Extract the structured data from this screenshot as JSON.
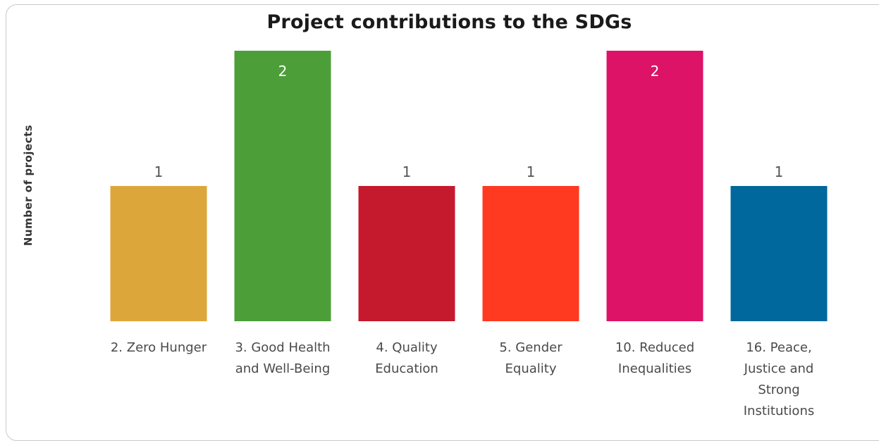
{
  "chart_data": {
    "type": "bar",
    "title": "Project contributions to the SDGs",
    "xlabel": "",
    "ylabel": "Number of projects",
    "ylim": [
      0,
      2
    ],
    "grid": false,
    "legend": "none",
    "categories": [
      "2. Zero Hunger",
      "3. Good Health and Well-Being",
      "4. Quality Education",
      "5. Gender Equality",
      "10. Reduced Inequalities",
      "16. Peace, Justice and Strong Institutions"
    ],
    "values": [
      1,
      2,
      1,
      1,
      2,
      1
    ],
    "colors": [
      "#DDA63A",
      "#4C9F38",
      "#C5192D",
      "#FF3A21",
      "#DD1367",
      "#00689D"
    ],
    "category_lines": [
      [
        "2. Zero Hunger"
      ],
      [
        "3. Good Health",
        "and Well-Being"
      ],
      [
        "4. Quality",
        "Education"
      ],
      [
        "5. Gender",
        "Equality"
      ],
      [
        "10. Reduced",
        "Inequalities"
      ],
      [
        "16. Peace,",
        "Justice and",
        "Strong",
        "Institutions"
      ]
    ]
  }
}
